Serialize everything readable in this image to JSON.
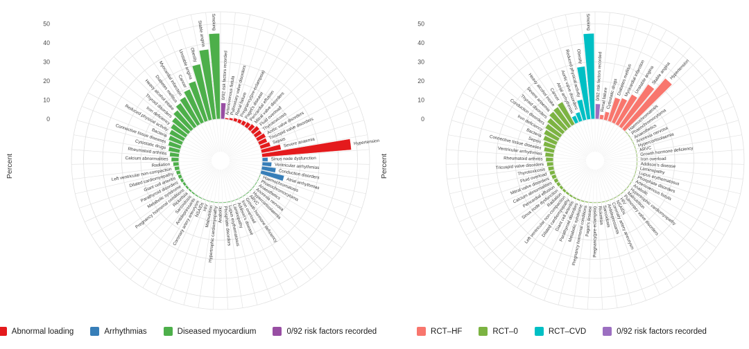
{
  "figure_title": "",
  "axis": {
    "ylabel": "Percent",
    "ticks": [
      0,
      10,
      20,
      30,
      40,
      50
    ],
    "ymax": 50
  },
  "chart_data": [
    {
      "id": "etiology",
      "type": "bar",
      "layout": "polar",
      "ylabel": "Percent",
      "ticks": [
        0,
        10,
        20,
        30,
        40,
        50
      ],
      "grid": true,
      "legend_position": "bottom",
      "colors": {
        "abnormal_loading": "#E41A1C",
        "arrhythmias": "#377EB8",
        "diseased_myocardium": "#4DAF4A",
        "none": "#984EA3"
      },
      "legend": [
        {
          "label": "Abnormal loading",
          "color": "#E41A1C"
        },
        {
          "label": "Arrhythmias",
          "color": "#377EB8"
        },
        {
          "label": "Diseased myocardium",
          "color": "#4DAF4A"
        },
        {
          "label": "0/92 risk factors recorded",
          "color": "#984EA3"
        }
      ],
      "categories_format": [
        "label",
        "percent",
        "group"
      ],
      "categories": [
        [
          "0/92 risk factors recorded",
          8.5,
          "none"
        ],
        [
          "Arteriovenous fistula",
          0.8,
          "abnormal_loading"
        ],
        [
          "Pulmonary valve disorders",
          1.2,
          "abnormal_loading"
        ],
        [
          "Renal failure",
          1.8,
          "abnormal_loading"
        ],
        [
          "Pregnancy(pre-eclampsia)",
          2.1,
          "abnormal_loading"
        ],
        [
          "Paget's disease",
          2.4,
          "abnormal_loading"
        ],
        [
          "Pericardial effusion",
          2.9,
          "abnormal_loading"
        ],
        [
          "Mitral valve disorders",
          3.5,
          "abnormal_loading"
        ],
        [
          "Fluid overload",
          4.5,
          "abnormal_loading"
        ],
        [
          "Thyrotoxicosis",
          4.2,
          "abnormal_loading"
        ],
        [
          "Aortic valve disorders",
          5.0,
          "abnormal_loading"
        ],
        [
          "Tricuspid valve disorders",
          4.6,
          "abnormal_loading"
        ],
        [
          "Sepsis",
          5.5,
          "abnormal_loading"
        ],
        [
          "Severe anaemia",
          10.5,
          "abnormal_loading"
        ],
        [
          "Hypertension",
          47,
          "abnormal_loading"
        ],
        [
          "Sinus node dysfunction",
          3,
          "arrhythmias"
        ],
        [
          "Ventricular arrhythmias",
          5,
          "arrhythmias"
        ],
        [
          "Conduction disorders",
          7.5,
          "arrhythmias"
        ],
        [
          "Atrial arrhythmias",
          12.5,
          "arrhythmias"
        ],
        [
          "Haemochromatosis",
          0.15,
          "diseased_myocardium"
        ],
        [
          "Phaeochromocytoma",
          0.15,
          "diseased_myocardium"
        ],
        [
          "Anaesthetics",
          0.15,
          "diseased_myocardium"
        ],
        [
          "Anorexia nervosa",
          0.15,
          "diseased_myocardium"
        ],
        [
          "Hypercortisolaemia",
          0.15,
          "diseased_myocardium"
        ],
        [
          "ARVC",
          0.15,
          "diseased_myocardium"
        ],
        [
          "Growth hormone deficiency",
          0.15,
          "diseased_myocardium"
        ],
        [
          "Iron overload",
          0.15,
          "diseased_myocardium"
        ],
        [
          "Addison's disease",
          0.15,
          "diseased_myocardium"
        ],
        [
          "Laminopathy",
          0.15,
          "diseased_myocardium"
        ],
        [
          "Lupus erythematosus",
          0.2,
          "diseased_myocardium"
        ],
        [
          "Phosphate disorders",
          0.2,
          "diseased_myocardium"
        ],
        [
          "Anabolic",
          0.25,
          "diseased_myocardium"
        ],
        [
          "Hypertrophic cardiomyopathy",
          0.3,
          "diseased_myocardium"
        ],
        [
          "Malnutrition",
          0.35,
          "diseased_myocardium"
        ],
        [
          "HIV",
          0.45,
          "diseased_myocardium"
        ],
        [
          "NSAIDs",
          0.5,
          "diseased_myocardium"
        ],
        [
          "Coronary artery aneurysm",
          0.6,
          "diseased_myocardium"
        ],
        [
          "Antidepressants",
          0.7,
          "diseased_myocardium"
        ],
        [
          "Sarcoidosis",
          0.8,
          "diseased_myocardium"
        ],
        [
          "Rickettsia",
          0.9,
          "diseased_myocardium"
        ],
        [
          "Pregnancy hormonal conditions",
          1.1,
          "diseased_myocardium"
        ],
        [
          "Metabolic syndrome",
          1.3,
          "diseased_myocardium"
        ],
        [
          "Parathyroid disorders",
          1.6,
          "diseased_myocardium"
        ],
        [
          "Giant cell arteritis",
          1.9,
          "diseased_myocardium"
        ],
        [
          "Dilated cardiomyopathy",
          2.2,
          "diseased_myocardium"
        ],
        [
          "Left ventricular non-compaction",
          2.6,
          "diseased_myocardium"
        ],
        [
          "Radiation",
          3.1,
          "diseased_myocardium"
        ],
        [
          "Calcium abnormalities",
          4,
          "diseased_myocardium"
        ],
        [
          "Rheumatoid arthritis",
          5,
          "diseased_myocardium"
        ],
        [
          "Cytostatic drugs",
          6,
          "diseased_myocardium"
        ],
        [
          "Connective tissue diseases",
          6.8,
          "diseased_myocardium"
        ],
        [
          "Bacteria",
          7.6,
          "diseased_myocardium"
        ],
        [
          "Reduced physical activity",
          8.5,
          "diseased_myocardium"
        ],
        [
          "Iron deficiency",
          9.5,
          "diseased_myocardium"
        ],
        [
          "Thyroid disorders",
          11,
          "diseased_myocardium"
        ],
        [
          "Heavy alcohol intake",
          13,
          "diseased_myocardium"
        ],
        [
          "Diabetes mellitus",
          15,
          "diseased_myocardium"
        ],
        [
          "Myocardial infarction",
          16.5,
          "diseased_myocardium"
        ],
        [
          "Cancer",
          19,
          "diseased_myocardium"
        ],
        [
          "Unstable angina",
          22,
          "diseased_myocardium"
        ],
        [
          "Obesity",
          30,
          "diseased_myocardium"
        ],
        [
          "Stable angina",
          37,
          "diseased_myocardium"
        ],
        [
          "Smoking",
          45,
          "diseased_myocardium"
        ]
      ]
    },
    {
      "id": "rct",
      "type": "bar",
      "layout": "polar",
      "ylabel": "Percent",
      "ticks": [
        0,
        10,
        20,
        30,
        40,
        50
      ],
      "grid": true,
      "legend_position": "bottom",
      "colors": {
        "rct_hf": "#F8766D",
        "rct_0": "#7CB342",
        "rct_cvd": "#00BFC4",
        "none": "#9C6FC1"
      },
      "legend": [
        {
          "label": "RCT–HF",
          "color": "#F8766D"
        },
        {
          "label": "RCT–0",
          "color": "#7CB342"
        },
        {
          "label": "RCT–CVD",
          "color": "#00BFC4"
        },
        {
          "label": "0/92 risk factors recorded",
          "color": "#9C6FC1"
        }
      ],
      "categories_format": [
        "label",
        "percent",
        "group"
      ],
      "categories": [
        [
          "0/92 risk factors recorded",
          8,
          "none"
        ],
        [
          "Renal failure",
          2.5,
          "rct_hf"
        ],
        [
          "Cytostatic drugs",
          4.5,
          "rct_hf"
        ],
        [
          "Diabetes mellitus",
          13,
          "rct_hf"
        ],
        [
          "Myocardial infarction",
          14,
          "rct_hf"
        ],
        [
          "Unstable angina",
          18,
          "rct_hf"
        ],
        [
          "Stable angina",
          27,
          "rct_hf"
        ],
        [
          "Hypertension",
          35,
          "rct_hf"
        ],
        [
          "Haemochromatosis",
          0.15,
          "rct_0"
        ],
        [
          "Phaeochromocytoma",
          0.15,
          "rct_0"
        ],
        [
          "Anaesthetics",
          0.15,
          "rct_0"
        ],
        [
          "Anorexia nervosa",
          0.15,
          "rct_0"
        ],
        [
          "Hypercortisolaemia",
          0.15,
          "rct_0"
        ],
        [
          "ARVC",
          0.15,
          "rct_0"
        ],
        [
          "Growth hormone deficiency",
          0.15,
          "rct_0"
        ],
        [
          "Iron overload",
          0.15,
          "rct_0"
        ],
        [
          "Addison's disease",
          0.15,
          "rct_0"
        ],
        [
          "Laminopathy",
          0.15,
          "rct_0"
        ],
        [
          "Lupus erythematosus",
          0.15,
          "rct_0"
        ],
        [
          "Phosphate disorders",
          0.15,
          "rct_0"
        ],
        [
          "Arteriovenous fistula",
          0.15,
          "rct_0"
        ],
        [
          "Anabolic",
          0.15,
          "rct_0"
        ],
        [
          "Hypertrophic cardiomyopathy",
          0.2,
          "rct_0"
        ],
        [
          "Malnutrition",
          0.2,
          "rct_0"
        ],
        [
          "Pulmonary valve disorders",
          0.25,
          "rct_0"
        ],
        [
          "HIV",
          0.25,
          "rct_0"
        ],
        [
          "NSAIDs",
          0.3,
          "rct_0"
        ],
        [
          "Coronary artery aneurysm",
          0.3,
          "rct_0"
        ],
        [
          "Antidepressants",
          0.35,
          "rct_0"
        ],
        [
          "Sarcoidosis",
          0.4,
          "rct_0"
        ],
        [
          "Rickettsia",
          0.45,
          "rct_0"
        ],
        [
          "Pregnancy(pre-eclampsia)",
          0.5,
          "rct_0"
        ],
        [
          "Paget's disease",
          0.55,
          "rct_0"
        ],
        [
          "Pregnancy hormonal conditions",
          0.6,
          "rct_0"
        ],
        [
          "Metabolic syndrome",
          0.7,
          "rct_0"
        ],
        [
          "Parathyroid disorders",
          0.8,
          "rct_0"
        ],
        [
          "Giant cell arteritis",
          0.9,
          "rct_0"
        ],
        [
          "Dilated cardiomyopathy",
          1.0,
          "rct_0"
        ],
        [
          "Left ventricular non-compaction",
          1.1,
          "rct_0"
        ],
        [
          "Radiation",
          1.3,
          "rct_0"
        ],
        [
          "Sinus node dysfunction",
          1.5,
          "rct_0"
        ],
        [
          "Pericardial effusion",
          1.8,
          "rct_0"
        ],
        [
          "Calcium abnormalities",
          2.1,
          "rct_0"
        ],
        [
          "Mitral valve disorders",
          2.4,
          "rct_0"
        ],
        [
          "Fluid overload",
          2.8,
          "rct_0"
        ],
        [
          "Thyrotoxicosis",
          3.1,
          "rct_0"
        ],
        [
          "Tricuspid valve disorders",
          3.5,
          "rct_0"
        ],
        [
          "Rheumatoid arthritis",
          4,
          "rct_0"
        ],
        [
          "Ventricular arrhythmias",
          4.5,
          "rct_0"
        ],
        [
          "Connective tissue diseases",
          5.5,
          "rct_0"
        ],
        [
          "Sepsis",
          6.5,
          "rct_0"
        ],
        [
          "Bacteria",
          7.5,
          "rct_0"
        ],
        [
          "Iron deficiency",
          8.5,
          "rct_0"
        ],
        [
          "Conduction disorders",
          9.5,
          "rct_0"
        ],
        [
          "Thyroid disorders",
          10.5,
          "rct_0"
        ],
        [
          "Severe anaemia",
          12,
          "rct_0"
        ],
        [
          "Heavy alcohol intake",
          12.5,
          "rct_0"
        ],
        [
          "Cancer",
          13.5,
          "rct_0"
        ],
        [
          "Atrial arrhythmias",
          4,
          "rct_cvd"
        ],
        [
          "Aortic valve disorders",
          5,
          "rct_cvd"
        ],
        [
          "Reduced physical activity",
          11,
          "rct_cvd"
        ],
        [
          "Obesity",
          28,
          "rct_cvd"
        ],
        [
          "Smoking",
          45,
          "rct_cvd"
        ]
      ]
    }
  ]
}
